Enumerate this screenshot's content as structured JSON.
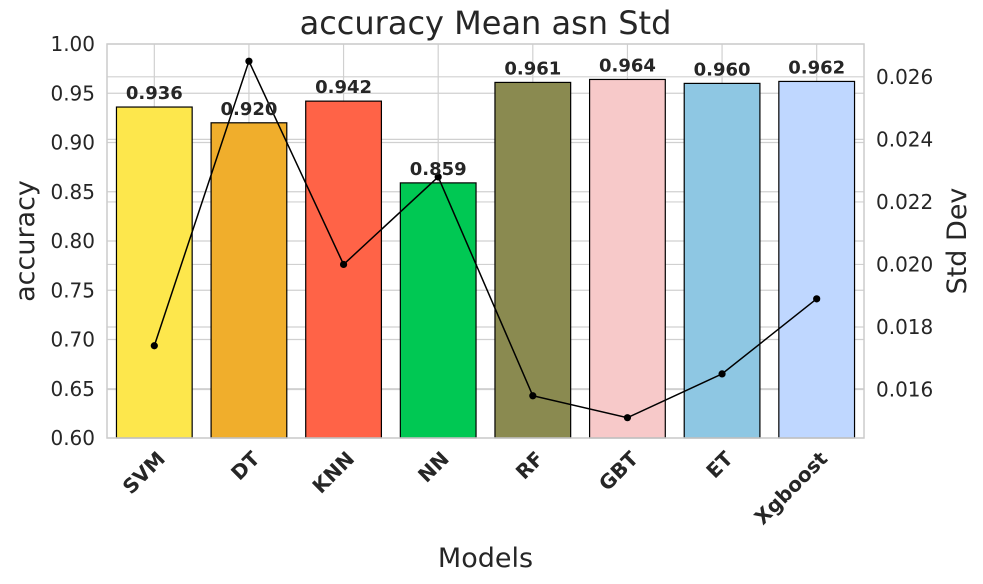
{
  "chart_data": {
    "type": "bar",
    "title": "accuracy Mean asn Std",
    "xlabel": "Models",
    "ylabel": "accuracy",
    "y2label": "Std Dev",
    "categories": [
      "SVM",
      "DT",
      "KNN",
      "NN",
      "RF",
      "GBT",
      "ET",
      "Xgboost"
    ],
    "ylim": [
      0.6,
      1.0
    ],
    "yticks": [
      "0.60",
      "0.65",
      "0.70",
      "0.75",
      "0.80",
      "0.85",
      "0.90",
      "0.95",
      "1.00"
    ],
    "y2lim": [
      0.01445,
      0.02705
    ],
    "y2ticks": [
      "0.016",
      "0.018",
      "0.020",
      "0.022",
      "0.024",
      "0.026"
    ],
    "grid": true,
    "series": [
      {
        "kind": "bar",
        "axis": "left",
        "values": [
          0.936,
          0.92,
          0.942,
          0.859,
          0.961,
          0.964,
          0.96,
          0.962
        ],
        "labels": [
          "0.936",
          "0.920",
          "0.942",
          "0.859",
          "0.961",
          "0.964",
          "0.960",
          "0.962"
        ],
        "colors": [
          "#FDE74C",
          "#F0AE2C",
          "#FF6347",
          "#00C853",
          "#8A8A50",
          "#F7C9C9",
          "#8EC7E3",
          "#BFD7FF"
        ]
      },
      {
        "kind": "line",
        "axis": "right",
        "values": [
          0.0174,
          0.0265,
          0.02,
          0.0228,
          0.0158,
          0.0151,
          0.0165,
          0.0189
        ],
        "color": "#000000"
      }
    ]
  }
}
